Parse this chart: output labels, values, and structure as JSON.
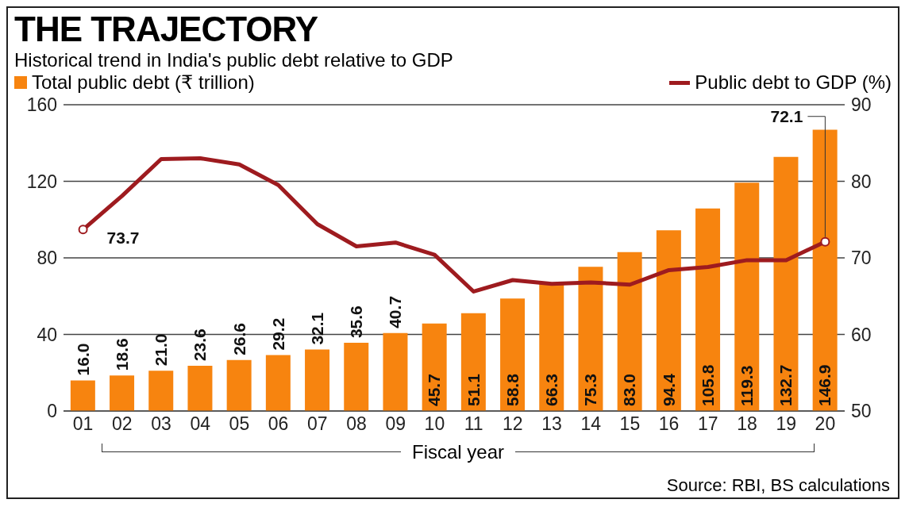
{
  "chart_data": {
    "type": "bar",
    "title": "THE TRAJECTORY",
    "subtitle": "Historical trend in India's public debt relative to GDP",
    "xlabel": "Fiscal year",
    "categories": [
      "01",
      "02",
      "03",
      "04",
      "05",
      "06",
      "07",
      "08",
      "09",
      "10",
      "11",
      "12",
      "13",
      "14",
      "15",
      "16",
      "17",
      "18",
      "19",
      "20"
    ],
    "series": [
      {
        "name": "Total public debt (₹ trillion)",
        "color": "#f7840f",
        "values": [
          16.0,
          18.6,
          21.0,
          23.6,
          26.6,
          29.2,
          32.1,
          35.6,
          40.7,
          45.7,
          51.1,
          58.8,
          66.3,
          75.3,
          83.0,
          94.4,
          105.8,
          119.3,
          132.7,
          146.9
        ],
        "value_labels": [
          "16.0",
          "18.6",
          "21.0",
          "23.6",
          "26.6",
          "29.2",
          "32.1",
          "35.6",
          "40.7",
          "45.7",
          "51.1",
          "58.8",
          "66.3",
          "75.3",
          "83.0",
          "94.4",
          "105.8",
          "119.3",
          "132.7",
          "146.9"
        ]
      },
      {
        "name": "Public debt to GDP (%)",
        "type": "line",
        "axis": "y2",
        "color": "#9e1b1f",
        "values": [
          73.7,
          78.1,
          82.9,
          83.0,
          82.2,
          79.5,
          74.4,
          71.5,
          72.0,
          70.4,
          65.6,
          67.1,
          66.6,
          66.8,
          66.5,
          68.4,
          68.8,
          69.7,
          69.7,
          72.1
        ],
        "value_labels": [
          "73.7",
          null,
          null,
          null,
          null,
          null,
          null,
          null,
          null,
          null,
          null,
          null,
          null,
          null,
          null,
          null,
          null,
          null,
          null,
          "72.1"
        ]
      }
    ],
    "ylim": [
      0,
      160
    ],
    "yticks": [
      0,
      40,
      80,
      120,
      160
    ],
    "y2lim": [
      50,
      90
    ],
    "y2ticks": [
      50,
      60,
      70,
      80,
      90
    ],
    "grid": "y",
    "legend": "top",
    "marker": "none",
    "line_style": "solid",
    "annotations": [
      "Source: RBI, BS calculations"
    ]
  }
}
